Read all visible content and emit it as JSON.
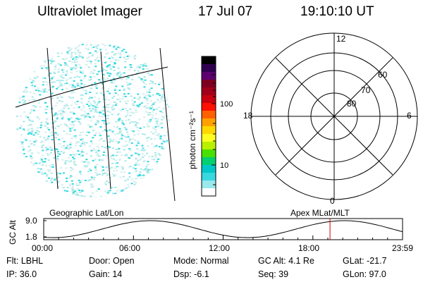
{
  "header": {
    "title": "Ultraviolet Imager",
    "date": "17 Jul 07",
    "time": "19:10:10 UT"
  },
  "colorbar": {
    "label": "photon cm⁻²s⁻¹",
    "ticks": [
      "100",
      "10"
    ],
    "colors": [
      "#000000",
      "#300050",
      "#5c0070",
      "#7e0020",
      "#a0001a",
      "#c80010",
      "#ff1000",
      "#ff6000",
      "#ffa000",
      "#ffd800",
      "#ffff20",
      "#b8f000",
      "#48e000",
      "#00d070",
      "#00c8c8",
      "#38d8e0",
      "#98e8ec",
      "#ffffff"
    ]
  },
  "polar_plot": {
    "mlt_labels": {
      "top": "12",
      "right": "6",
      "bottom": "0",
      "left": "18"
    },
    "lat_labels": [
      "60",
      "70",
      "80"
    ]
  },
  "image_panel": {
    "caption": "Geographic Lat/Lon",
    "speckle_colors": [
      "#30d8e0",
      "#a8e8e8",
      "#d4eeee"
    ]
  },
  "apex_label": "Apex MLat/MLT",
  "orbit_plot": {
    "ylabel": "GC Alt",
    "ytick_top": "9.0",
    "ytick_bottom": "1.8",
    "xticks": [
      "00:00",
      "06:00",
      "12:00",
      "18:00",
      "23:59"
    ],
    "marker_color": "#d00000",
    "marker_time_fraction": 0.7979
  },
  "info": {
    "row1": [
      "Flt: LBHL",
      "Door: Open",
      "Mode: Normal",
      "GC Alt: 4.1 Re",
      "GLat: -21.7"
    ],
    "row2": [
      "IP: 36.0",
      "Gain: 14",
      "Dsp:   -6.1",
      "Seq: 39",
      "GLon:  97.0"
    ]
  }
}
